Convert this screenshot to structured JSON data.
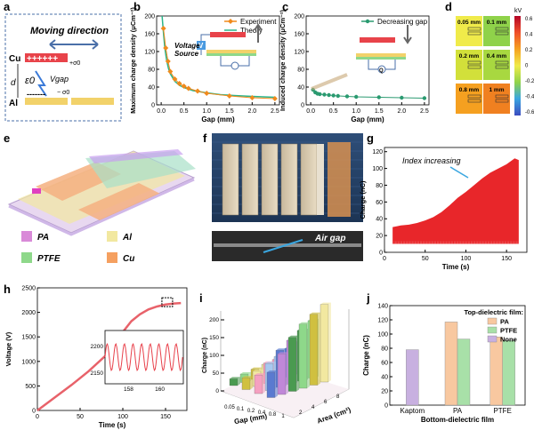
{
  "panels": {
    "a": {
      "letter": "a",
      "title": "Moving direction",
      "cu": "Cu",
      "al": "Al",
      "plus_charges": "++++++",
      "minus_charges": "-------",
      "sigma_plus": "+σ0",
      "sigma_minus": "− σ0",
      "d": "d",
      "eps": "ε0",
      "vgap": "Vgap"
    },
    "b": {
      "letter": "b",
      "voltage_source": "Voltage\nSource",
      "v_symbol": "V"
    },
    "c": {
      "letter": "c",
      "q_symbol": "Q"
    },
    "d": {
      "letter": "d",
      "tiles": [
        "0.05 mm",
        "0.1 mm",
        "0.2 mm",
        "0.4 mm",
        "0.8 mm",
        "1 mm"
      ],
      "tile_colors": [
        "#f0eb4a",
        "#8fd24a",
        "#d2e03a",
        "#a8d840",
        "#f5a020",
        "#f08020"
      ],
      "colorbar_unit": "kV",
      "colorbar_ticks": [
        "0.6",
        "0.4",
        "0.2",
        "0",
        "-0.2",
        "-0.4",
        "-0.6"
      ],
      "colorbar_colors": [
        "#b40426",
        "#f0502a",
        "#f5a020",
        "#f0eb4a",
        "#8fd24a",
        "#3aa6e0",
        "#3b4cc0"
      ]
    },
    "e": {
      "letter": "e",
      "legend": [
        {
          "label": "PA",
          "color": "#d98ad8"
        },
        {
          "label": "PTFE",
          "color": "#8ed88a"
        },
        {
          "label": "Al",
          "color": "#f2e8a0"
        },
        {
          "label": "Cu",
          "color": "#f5a060"
        }
      ]
    },
    "f": {
      "letter": "f",
      "air_gap": "Air gap"
    },
    "g": {
      "letter": "g",
      "annotation": "Index increasing"
    },
    "h": {
      "letter": "h"
    },
    "i": {
      "letter": "i",
      "axis_gap": "Gap (mm)",
      "axis_area": "Area (cm²)"
    },
    "j": {
      "letter": "j"
    }
  },
  "chart_data": [
    {
      "id": "b",
      "type": "scatter",
      "title": "",
      "xlabel": "Gap (mm)",
      "ylabel": "Maximum charge density (μCm⁻²)",
      "xlim": [
        -0.1,
        2.6
      ],
      "ylim": [
        0,
        200
      ],
      "xticks": [
        "0.0",
        "0.5",
        "1.0",
        "1.5",
        "2.0",
        "2.5"
      ],
      "yticks": [
        "0",
        "40",
        "80",
        "120",
        "160",
        "200"
      ],
      "legend": "top-right",
      "series": [
        {
          "name": "Experiment",
          "color": "#f08a1c",
          "marker": "diamond",
          "x": [
            0.05,
            0.1,
            0.15,
            0.2,
            0.3,
            0.4,
            0.5,
            0.6,
            0.8,
            1.0,
            1.5,
            2.0,
            2.5
          ],
          "y": [
            172,
            128,
            98,
            75,
            58,
            48,
            42,
            37,
            31,
            26,
            20,
            16,
            14
          ]
        },
        {
          "name": "Theory",
          "color": "#2bb58a",
          "marker": "none",
          "x": [
            0.02,
            0.05,
            0.08,
            0.12,
            0.16,
            0.2,
            0.3,
            0.4,
            0.5,
            0.7,
            1.0,
            1.3,
            1.6,
            2.0,
            2.5
          ],
          "y": [
            200,
            162,
            128,
            100,
            82,
            70,
            53,
            44,
            39,
            32,
            27,
            23,
            21,
            19,
            17
          ]
        }
      ]
    },
    {
      "id": "c",
      "type": "line",
      "title": "",
      "xlabel": "Gap (mm)",
      "ylabel": "Induced charge density (μCm⁻²)",
      "xlim": [
        -0.1,
        2.6
      ],
      "ylim": [
        0,
        200
      ],
      "xticks": [
        "0.0",
        "0.5",
        "1.0",
        "1.5",
        "2.0",
        "2.5"
      ],
      "yticks": [
        "0",
        "40",
        "80",
        "120",
        "160",
        "200"
      ],
      "legend": "top-right",
      "series": [
        {
          "name": "Decreasing gap",
          "color": "#2a9a70",
          "marker": "circle",
          "x": [
            0.05,
            0.1,
            0.15,
            0.2,
            0.3,
            0.4,
            0.5,
            0.6,
            0.8,
            1.0,
            1.5,
            2.0,
            2.5
          ],
          "y": [
            34,
            28,
            25,
            24,
            23,
            22,
            21,
            20,
            19,
            18,
            17,
            16,
            15
          ]
        }
      ]
    },
    {
      "id": "g",
      "type": "area",
      "title": "",
      "xlabel": "Time (s)",
      "ylabel": "Charge (nC)",
      "xlim": [
        0,
        175
      ],
      "ylim": [
        0,
        125
      ],
      "xticks": [
        "0",
        "50",
        "100",
        "150"
      ],
      "yticks": [
        "0",
        "20",
        "40",
        "60",
        "80",
        "100",
        "120"
      ],
      "series": [
        {
          "name": "",
          "color": "#e8262a",
          "x": [
            10,
            20,
            30,
            40,
            50,
            60,
            70,
            80,
            90,
            100,
            110,
            120,
            130,
            140,
            150,
            160,
            165
          ],
          "upper": [
            30,
            32,
            33,
            35,
            38,
            42,
            48,
            56,
            65,
            72,
            80,
            88,
            95,
            100,
            105,
            112,
            110
          ],
          "lower": [
            10,
            10,
            10,
            10,
            10,
            10,
            10,
            10,
            10,
            10,
            10,
            10,
            10,
            10,
            10,
            10,
            10
          ]
        }
      ]
    },
    {
      "id": "h",
      "type": "line",
      "title": "",
      "xlabel": "Time (s)",
      "ylabel": "Voltage (V)",
      "xlim": [
        0,
        175
      ],
      "ylim": [
        0,
        2500
      ],
      "xticks": [
        "0",
        "50",
        "100",
        "150"
      ],
      "yticks": [
        "0",
        "500",
        "1000",
        "1500",
        "2000",
        "2500"
      ],
      "series": [
        {
          "name": "",
          "color": "#e8626a",
          "x": [
            0,
            20,
            40,
            60,
            80,
            90,
            100,
            110,
            120,
            130,
            140,
            150,
            160,
            168
          ],
          "y": [
            0,
            260,
            520,
            800,
            1120,
            1320,
            1600,
            1820,
            1960,
            2060,
            2120,
            2160,
            2180,
            2190
          ]
        }
      ],
      "inset": {
        "xticks": [
          "158",
          "160"
        ],
        "yticks": [
          "2150",
          "2200"
        ],
        "ylim": [
          2130,
          2230
        ],
        "xlim": [
          156.5,
          161.5
        ],
        "color": "#e8404a"
      }
    },
    {
      "id": "i",
      "type": "bar",
      "title": "",
      "xlabel": "Gap (mm)",
      "ylabel": "Charge (nC)",
      "zlabel": "Area (cm²)",
      "zticks": [
        "0",
        "50",
        "100",
        "150",
        "200"
      ],
      "gap_ticks": [
        "0.05",
        "0.1",
        "0.2",
        "0.4",
        "0.8",
        "1"
      ],
      "area_ticks": [
        "2",
        "4",
        "6",
        "8"
      ],
      "colors": [
        "#4a9a50",
        "#8ed88a",
        "#d0c040",
        "#f2e8a0",
        "#f5a0c0",
        "#a8c8f0",
        "#5a7ad0",
        "#c088d8"
      ],
      "values": [
        [
          20,
          35,
          55,
          75
        ],
        [
          25,
          45,
          80,
          120
        ],
        [
          30,
          60,
          110,
          160
        ],
        [
          35,
          70,
          130,
          190
        ],
        [
          40,
          85,
          150,
          210
        ],
        [
          45,
          95,
          170,
          230
        ]
      ]
    },
    {
      "id": "j",
      "type": "bar",
      "title": "",
      "xlabel": "Bottom-dielectric film",
      "ylabel": "Charge (nC)",
      "ylim": [
        0,
        140
      ],
      "yticks": [
        "0",
        "20",
        "40",
        "60",
        "80",
        "100",
        "120",
        "140"
      ],
      "categories": [
        "Kaptom",
        "PA",
        "PTFE"
      ],
      "legend_title": "Top-dielectric film:",
      "legend": "top-right",
      "series": [
        {
          "name": "PA",
          "color": "#f8c8a0",
          "values": [
            null,
            117,
            96
          ]
        },
        {
          "name": "PTFE",
          "color": "#a8e0a8",
          "values": [
            null,
            93,
            91
          ]
        },
        {
          "name": "None",
          "color": "#c8b0e0",
          "values": [
            78,
            null,
            null
          ]
        }
      ]
    }
  ]
}
